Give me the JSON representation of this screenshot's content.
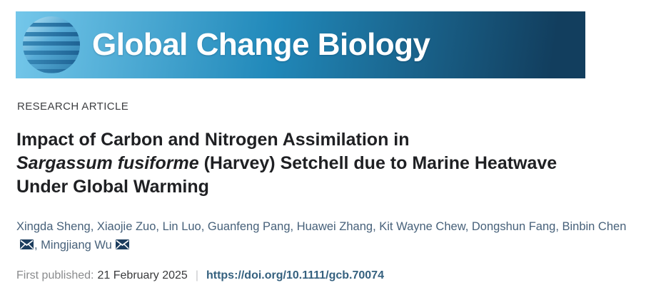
{
  "banner": {
    "journal_name": "Global Change Biology"
  },
  "article": {
    "category": "RESEARCH ARTICLE",
    "title_line1": "Impact of Carbon and Nitrogen Assimilation in",
    "title_line2_italic": "Sargassum fusiforme",
    "title_line2_rest": " (Harvey) Setchell due to Marine Heatwave",
    "title_line3": "Under Global Warming"
  },
  "authors": {
    "separator": ", ",
    "list": [
      {
        "name": "Xingda Sheng"
      },
      {
        "name": "Xiaojie Zuo"
      },
      {
        "name": "Lin Luo"
      },
      {
        "name": "Guanfeng Pang"
      },
      {
        "name": "Huawei Zhang"
      },
      {
        "name": "Kit Wayne Chew"
      },
      {
        "name": "Dongshun Fang"
      },
      {
        "name": "Binbin Chen",
        "email": true
      },
      {
        "name": "Mingjiang Wu",
        "email": true
      }
    ]
  },
  "publication": {
    "label": "First published:",
    "date": "21 February 2025",
    "separator": "|",
    "doi": "https://doi.org/10.1111/gcb.70074"
  },
  "icons": {
    "logo": "globe-icon",
    "email": "envelope-icon"
  },
  "colors": {
    "banner_gradient_left": "#74c7ea",
    "banner_gradient_mid": "#2189ba",
    "banner_gradient_right": "#123e5e",
    "author_link": "#47617a",
    "doi_link": "#35617f",
    "envelope": "#1c3d5e"
  }
}
